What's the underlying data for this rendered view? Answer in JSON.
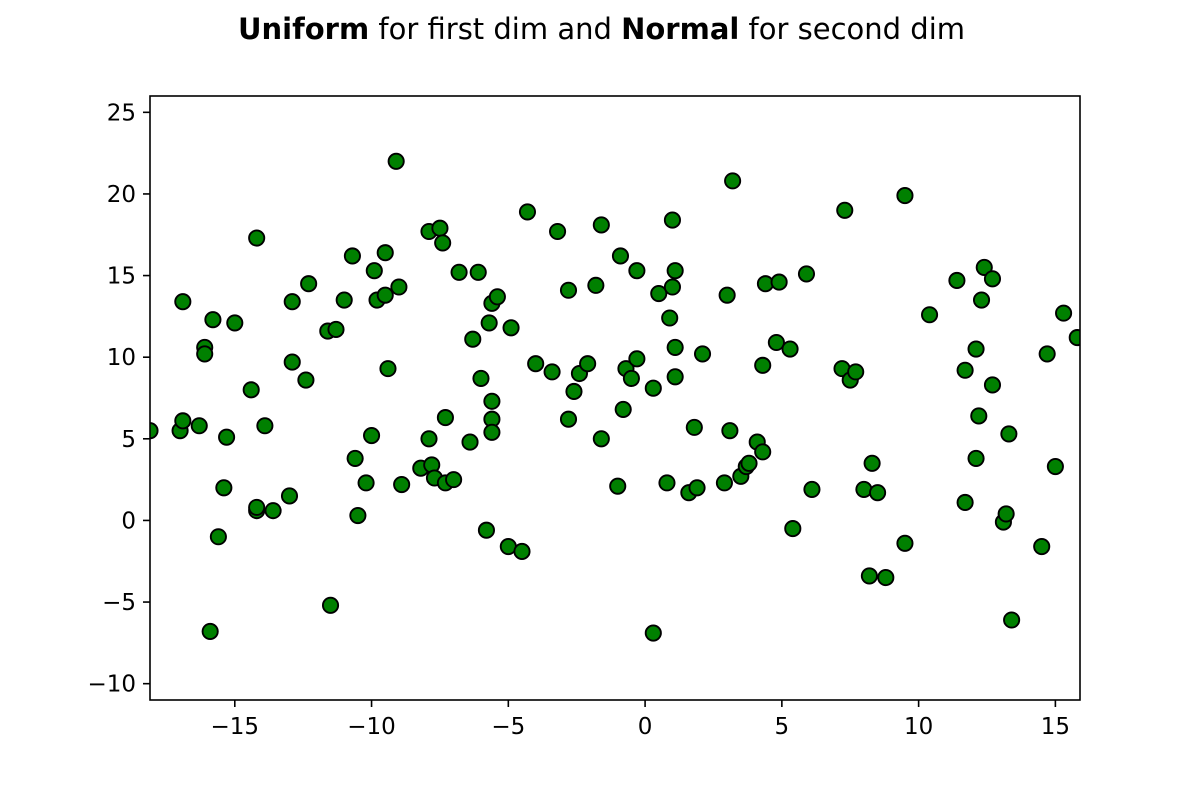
{
  "chart_data": {
    "type": "scatter",
    "title_parts": [
      {
        "text": "Uniform",
        "bold": true
      },
      {
        "text": " for first dim and ",
        "bold": false
      },
      {
        "text": "Normal",
        "bold": true
      },
      {
        "text": " for second dim",
        "bold": false
      }
    ],
    "xlabel": "",
    "ylabel": "",
    "xlim": [
      -18.1,
      15.9
    ],
    "ylim": [
      -11,
      26
    ],
    "x_ticks": [
      -15,
      -10,
      -5,
      0,
      5,
      10,
      15
    ],
    "x_tick_labels": [
      "−15",
      "−10",
      "−5",
      "0",
      "5",
      "10",
      "15"
    ],
    "y_ticks": [
      -10,
      -5,
      0,
      5,
      10,
      15,
      20,
      25
    ],
    "y_tick_labels": [
      "−10",
      "−5",
      "0",
      "5",
      "10",
      "15",
      "20",
      "25"
    ],
    "grid": false,
    "marker_color": "#008000",
    "marker_edge_color": "#000000",
    "points": [
      [
        -18.1,
        5.5
      ],
      [
        -17.0,
        5.5
      ],
      [
        -16.9,
        6.1
      ],
      [
        -16.9,
        13.4
      ],
      [
        -16.3,
        5.8
      ],
      [
        -16.1,
        10.6
      ],
      [
        -16.1,
        10.2
      ],
      [
        -15.9,
        -6.8
      ],
      [
        -15.8,
        12.3
      ],
      [
        -15.6,
        -1.0
      ],
      [
        -15.4,
        2.0
      ],
      [
        -15.3,
        5.1
      ],
      [
        -15.0,
        12.1
      ],
      [
        -14.4,
        8.0
      ],
      [
        -14.2,
        0.6
      ],
      [
        -14.2,
        0.8
      ],
      [
        -14.2,
        17.3
      ],
      [
        -13.9,
        5.8
      ],
      [
        -13.6,
        0.6
      ],
      [
        -13.0,
        1.5
      ],
      [
        -12.9,
        9.7
      ],
      [
        -12.9,
        13.4
      ],
      [
        -12.4,
        8.6
      ],
      [
        -12.3,
        14.5
      ],
      [
        -11.5,
        -5.2
      ],
      [
        -11.6,
        11.6
      ],
      [
        -11.3,
        11.7
      ],
      [
        -11.0,
        13.5
      ],
      [
        -10.7,
        16.2
      ],
      [
        -10.6,
        3.8
      ],
      [
        -10.5,
        0.3
      ],
      [
        -10.2,
        2.3
      ],
      [
        -10.0,
        5.2
      ],
      [
        -9.9,
        15.3
      ],
      [
        -9.8,
        13.5
      ],
      [
        -9.5,
        13.8
      ],
      [
        -9.5,
        16.4
      ],
      [
        -9.4,
        9.3
      ],
      [
        -9.1,
        22.0
      ],
      [
        -9.0,
        14.3
      ],
      [
        -8.9,
        2.2
      ],
      [
        -8.2,
        3.2
      ],
      [
        -7.9,
        17.7
      ],
      [
        -7.9,
        5.0
      ],
      [
        -7.8,
        3.4
      ],
      [
        -7.7,
        2.6
      ],
      [
        -7.5,
        17.9
      ],
      [
        -7.4,
        17.0
      ],
      [
        -7.3,
        2.3
      ],
      [
        -7.3,
        6.3
      ],
      [
        -7.0,
        2.5
      ],
      [
        -6.8,
        15.2
      ],
      [
        -6.4,
        4.8
      ],
      [
        -6.3,
        11.1
      ],
      [
        -6.1,
        15.2
      ],
      [
        -6.0,
        8.7
      ],
      [
        -5.8,
        -0.6
      ],
      [
        -5.7,
        12.1
      ],
      [
        -5.6,
        13.3
      ],
      [
        -5.6,
        7.3
      ],
      [
        -5.6,
        6.2
      ],
      [
        -5.6,
        5.4
      ],
      [
        -5.4,
        13.7
      ],
      [
        -5.0,
        -1.6
      ],
      [
        -4.9,
        11.8
      ],
      [
        -4.5,
        -1.9
      ],
      [
        -4.3,
        18.9
      ],
      [
        -4.0,
        9.6
      ],
      [
        -3.4,
        9.1
      ],
      [
        -3.2,
        17.7
      ],
      [
        -2.8,
        14.1
      ],
      [
        -2.8,
        6.2
      ],
      [
        -2.6,
        7.9
      ],
      [
        -2.4,
        9.0
      ],
      [
        -2.1,
        9.6
      ],
      [
        -1.8,
        14.4
      ],
      [
        -1.6,
        18.1
      ],
      [
        -1.6,
        5.0
      ],
      [
        -1.0,
        2.1
      ],
      [
        -0.9,
        16.2
      ],
      [
        -0.8,
        6.8
      ],
      [
        -0.7,
        9.3
      ],
      [
        -0.5,
        8.7
      ],
      [
        -0.3,
        15.3
      ],
      [
        -0.3,
        9.9
      ],
      [
        0.3,
        8.1
      ],
      [
        0.3,
        -6.9
      ],
      [
        0.5,
        13.9
      ],
      [
        0.8,
        2.3
      ],
      [
        0.9,
        12.4
      ],
      [
        1.0,
        18.4
      ],
      [
        1.0,
        14.3
      ],
      [
        1.1,
        15.3
      ],
      [
        1.1,
        10.6
      ],
      [
        1.1,
        8.8
      ],
      [
        1.6,
        1.7
      ],
      [
        1.8,
        5.7
      ],
      [
        1.9,
        2.0
      ],
      [
        2.1,
        10.2
      ],
      [
        2.9,
        2.3
      ],
      [
        3.0,
        13.8
      ],
      [
        3.1,
        5.5
      ],
      [
        3.2,
        20.8
      ],
      [
        3.5,
        2.7
      ],
      [
        3.7,
        3.3
      ],
      [
        3.8,
        3.5
      ],
      [
        4.1,
        4.8
      ],
      [
        4.3,
        4.2
      ],
      [
        4.3,
        9.5
      ],
      [
        4.4,
        14.5
      ],
      [
        4.8,
        10.9
      ],
      [
        4.9,
        14.6
      ],
      [
        5.3,
        10.5
      ],
      [
        5.4,
        -0.5
      ],
      [
        5.9,
        15.1
      ],
      [
        6.1,
        1.9
      ],
      [
        7.2,
        9.3
      ],
      [
        7.3,
        19.0
      ],
      [
        7.5,
        8.6
      ],
      [
        7.7,
        9.1
      ],
      [
        8.0,
        1.9
      ],
      [
        8.2,
        -3.4
      ],
      [
        8.3,
        3.5
      ],
      [
        8.5,
        1.7
      ],
      [
        8.8,
        -3.5
      ],
      [
        9.5,
        -1.4
      ],
      [
        9.5,
        19.9
      ],
      [
        10.4,
        12.6
      ],
      [
        11.4,
        14.7
      ],
      [
        11.7,
        9.2
      ],
      [
        11.7,
        1.1
      ],
      [
        12.1,
        10.5
      ],
      [
        12.1,
        3.8
      ],
      [
        12.2,
        6.4
      ],
      [
        12.3,
        13.5
      ],
      [
        12.4,
        15.5
      ],
      [
        12.7,
        8.3
      ],
      [
        12.7,
        14.8
      ],
      [
        13.1,
        -0.1
      ],
      [
        13.2,
        0.4
      ],
      [
        13.3,
        5.3
      ],
      [
        13.4,
        -6.1
      ],
      [
        14.5,
        -1.6
      ],
      [
        14.7,
        10.2
      ],
      [
        15.0,
        3.3
      ],
      [
        15.3,
        12.7
      ],
      [
        15.8,
        11.2
      ]
    ]
  }
}
